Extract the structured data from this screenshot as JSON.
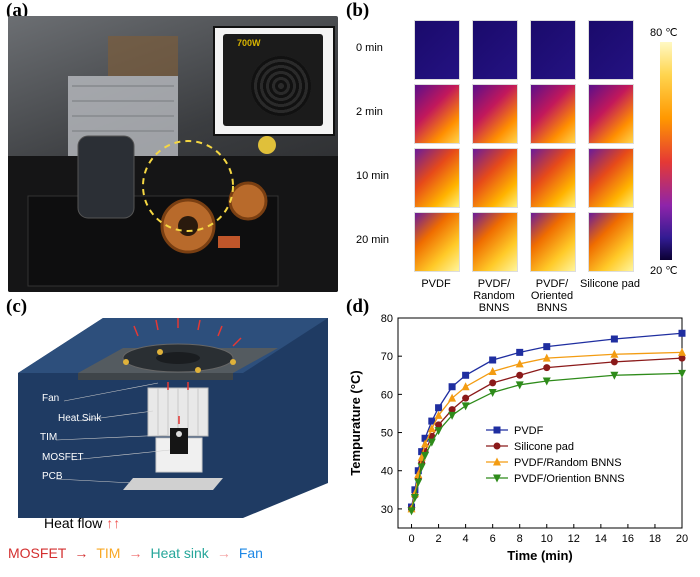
{
  "panels": {
    "a": "(a)",
    "b": "(b)",
    "c": "(c)",
    "d": "(d)"
  },
  "panel_a": {
    "inset_label": "700W"
  },
  "panel_b": {
    "times": [
      "0 min",
      "2 min",
      "10 min",
      "20 min"
    ],
    "columns": [
      "PVDF",
      "PVDF/\nRandom\nBNNS",
      "PVDF/\nOriented\nBNNS",
      "Silicone pad"
    ],
    "colorbar_max": "80 ℃",
    "colorbar_min": "20 ℃"
  },
  "panel_c": {
    "labels": [
      "Fan",
      "Heat Sink",
      "TIM",
      "MOSFET",
      "PCB"
    ],
    "heat_flow": "Heat flow",
    "heat_flow_arrows": "↑↑",
    "flow": [
      {
        "text": "MOSFET",
        "color": "#d32f2f"
      },
      {
        "text": "TIM",
        "color": "#f9a825"
      },
      {
        "text": "Heat sink",
        "color": "#26a69a"
      },
      {
        "text": "Fan",
        "color": "#1e88e5"
      }
    ],
    "arrow_colors": [
      "#d32f2f",
      "#ef6c6c",
      "#f4a0a0"
    ]
  },
  "chart_data": {
    "type": "line",
    "xlabel": "Time (min)",
    "ylabel": "Tempurature (°C)",
    "xlim": [
      -1,
      20
    ],
    "ylim": [
      25,
      80
    ],
    "xticks": [
      0,
      2,
      4,
      6,
      8,
      10,
      12,
      14,
      16,
      18,
      20
    ],
    "yticks": [
      30,
      40,
      50,
      60,
      70,
      80
    ],
    "x": [
      0,
      0.25,
      0.5,
      0.75,
      1,
      1.5,
      2,
      3,
      4,
      6,
      8,
      10,
      15,
      20
    ],
    "series": [
      {
        "name": "PVDF",
        "color": "#1f2ea0",
        "marker": "square",
        "values": [
          30.5,
          35,
          40,
          45,
          48.5,
          53,
          56.5,
          62,
          65,
          69,
          71,
          72.5,
          74.5,
          76
        ]
      },
      {
        "name": "Silicone pad",
        "color": "#8b1a1a",
        "marker": "circle",
        "values": [
          30,
          33.5,
          38,
          42,
          45,
          49,
          52,
          56,
          59,
          63,
          65,
          67,
          68.5,
          69.5
        ]
      },
      {
        "name": "PVDF/Random BNNS",
        "color": "#f39c12",
        "marker": "triangle-up",
        "values": [
          30,
          34,
          39,
          43.5,
          47,
          51,
          54.5,
          59,
          62,
          66,
          68,
          69.5,
          70.5,
          71
        ]
      },
      {
        "name": "PVDF/Oriention BNNS",
        "color": "#2e8b1a",
        "marker": "triangle-down",
        "values": [
          29.5,
          33,
          37,
          41,
          44,
          47.5,
          50.5,
          54.5,
          57,
          60.5,
          62.5,
          63.5,
          65,
          65.5
        ]
      }
    ]
  }
}
